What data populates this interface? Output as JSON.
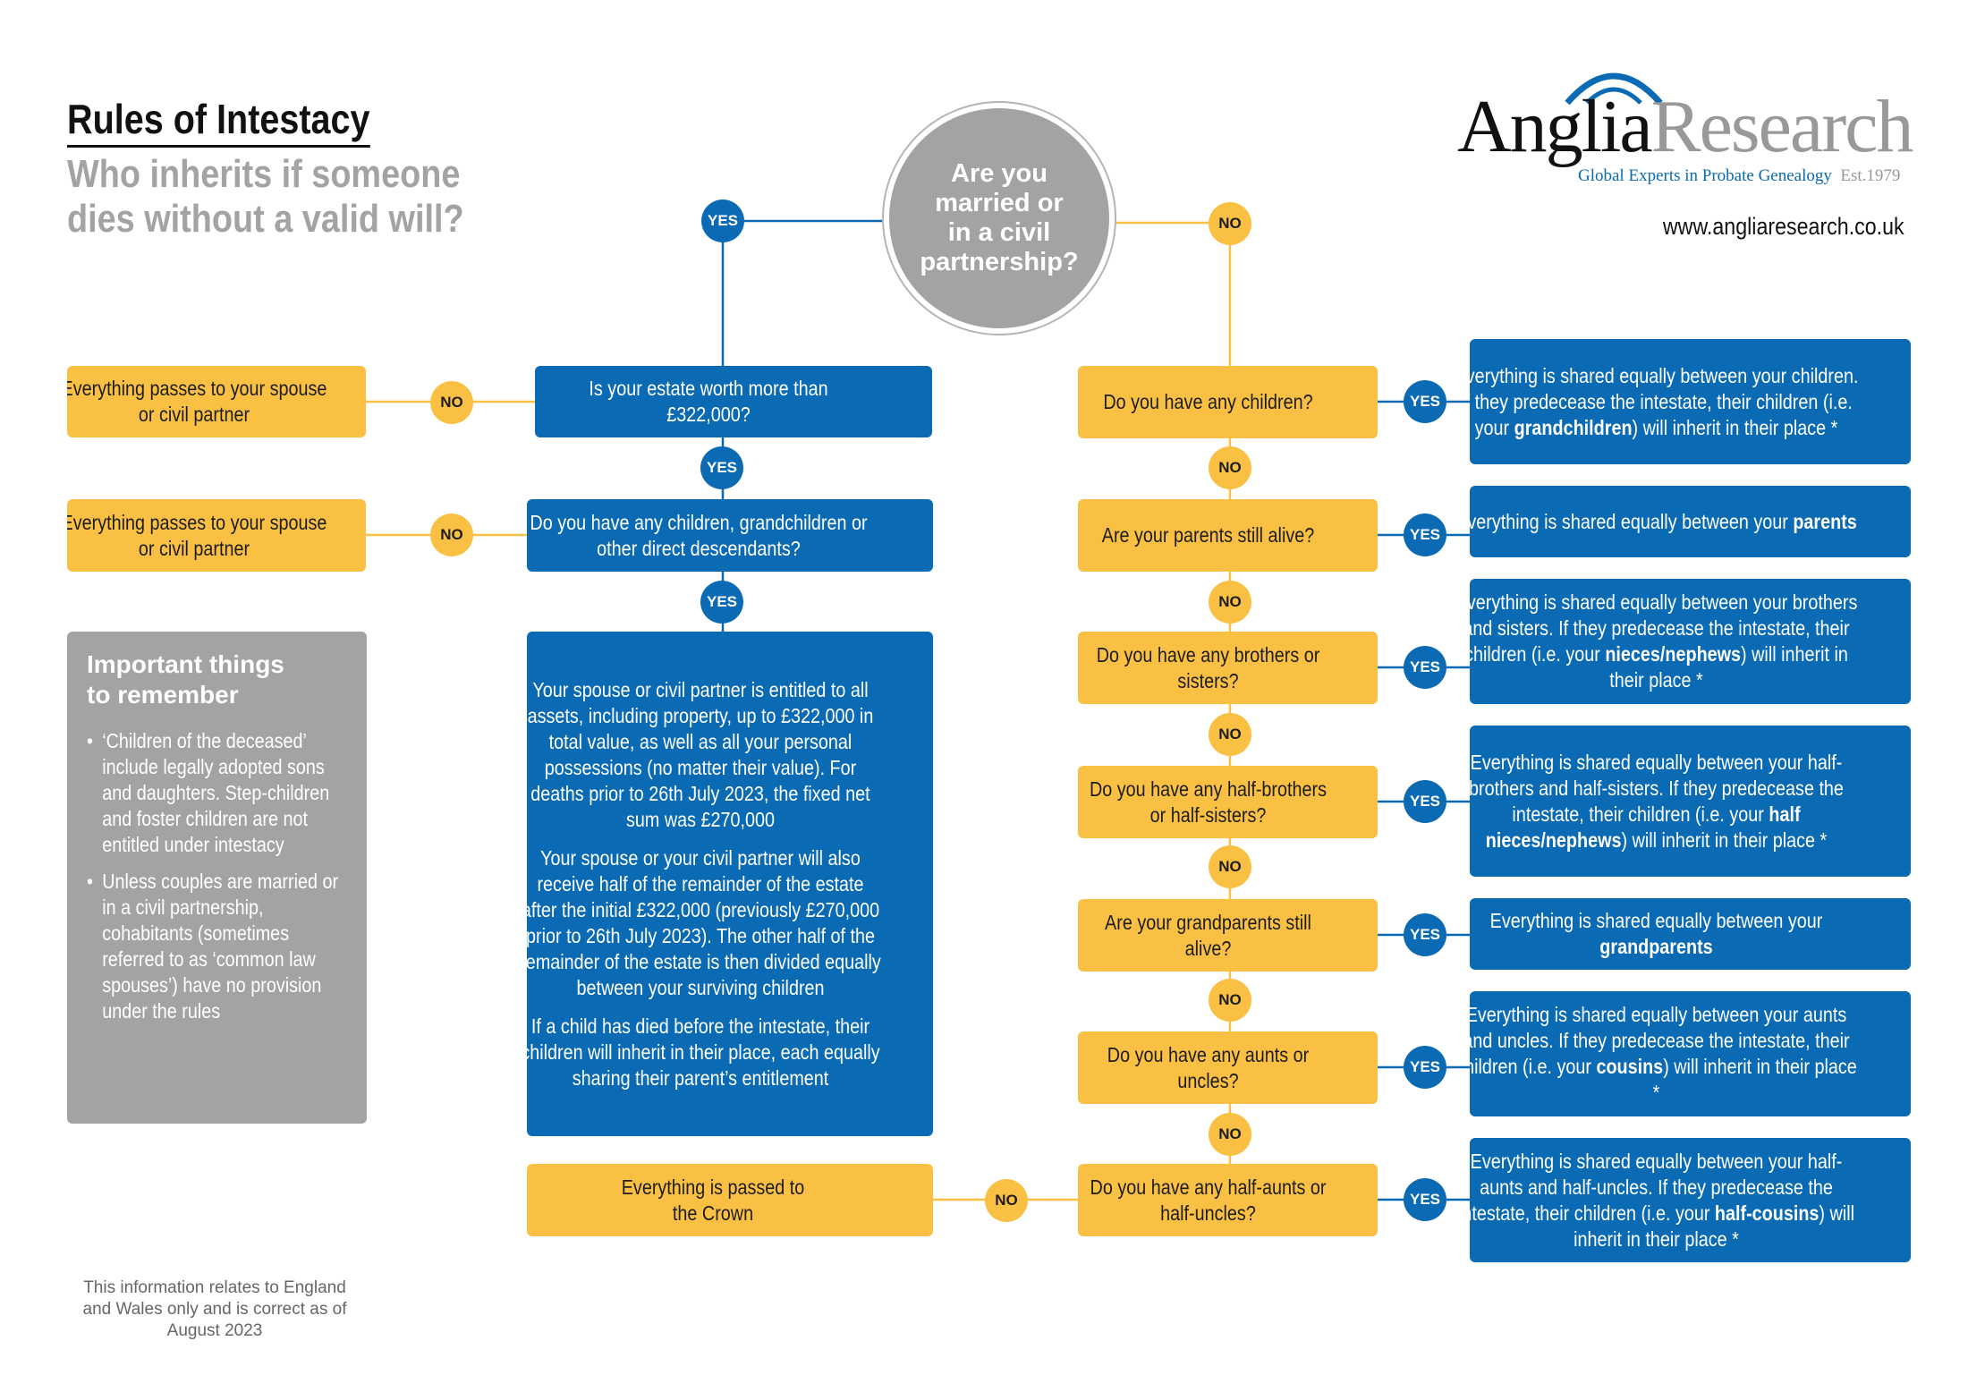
{
  "header": {
    "title": "Rules of Intestacy",
    "subtitle_line1": "Who inherits if someone",
    "subtitle_line2": "dies without a valid will?"
  },
  "logo": {
    "brand_dark": "Anglia",
    "brand_light": "Research",
    "tagline": "Global Experts in Probate Genealogy",
    "est": "Est.1979",
    "url": "www.angliaresearch.co.uk"
  },
  "start_question": {
    "line1": "Are you",
    "line2": "married or",
    "line3": "in a civil",
    "line4": "partnership?"
  },
  "labels": {
    "yes": "YES",
    "no": "NO"
  },
  "left": {
    "q1": "Is your estate worth more than £322,000?",
    "q1_no": "Everything passes to your spouse or civil partner",
    "q2": "Do you have any children, grandchildren or other direct descendants?",
    "q2_no": "Everything passes to your spouse or civil partner",
    "outcome_p1": "Your spouse or civil partner is entitled to all assets, including property, up to £322,000 in total value, as well as all your personal possessions (no matter their value). For deaths prior to 26th July 2023, the fixed net sum was £270,000",
    "outcome_p2": "Your spouse or your civil partner will also receive half of the remainder of the estate after the initial £322,000 (previously £270,000 prior to 26th July 2023). The other half of the remainder of the estate is then divided equally between your surviving children",
    "outcome_p3": "If a child has died before the intestate, their children will inherit in their place, each equally sharing their parent’s entitlement",
    "crown": "Everything is passed to the Crown"
  },
  "remember": {
    "title": "Important things to remember",
    "items": [
      "‘Children of the deceased’ include legally adopted sons and daughters. Step-children and foster children are not entitled under intestacy",
      "Unless couples are married or in a civil partnership, cohabitants (sometimes referred to as ‘common law spouses’) have no provision under the rules"
    ]
  },
  "footnote": "This information relates to England and Wales only and is correct as of August 2023",
  "right": [
    {
      "q": "Do you have any children?",
      "pre": "Everything is shared equally between your children. If they predecease the intestate, their children (i.e. your ",
      "bold": "grandchildren",
      "post": ") will inherit in their place *"
    },
    {
      "q": "Are your parents still alive?",
      "pre": "Everything is shared equally between your ",
      "bold": "parents",
      "post": ""
    },
    {
      "q": "Do you have any brothers or sisters?",
      "pre": "Everything is shared equally between your brothers and sisters. If they predecease the intestate, their children (i.e. your ",
      "bold": "nieces/nephews",
      "post": ") will inherit in their place *"
    },
    {
      "q": "Do you have any half-brothers or half-sisters?",
      "pre": "Everything is shared equally between your half-brothers and half-sisters. If they predecease the intestate, their children (i.e. your ",
      "bold": "half nieces/nephews",
      "post": ") will inherit in their place *"
    },
    {
      "q": "Are your grandparents still alive?",
      "pre": "Everything is shared equally between your ",
      "bold": "grandparents",
      "post": ""
    },
    {
      "q": "Do you have any aunts or uncles?",
      "pre": "Everything is shared equally between your aunts and uncles. If they predecease the intestate, their children (i.e. your ",
      "bold": "cousins",
      "post": ") will inherit in their place *"
    },
    {
      "q": "Do you have any half-aunts or half-uncles?",
      "pre": "Everything is shared equally between your half-aunts and half-uncles. If they predecease the intestate, their children (i.e. your ",
      "bold": "half-cousins",
      "post": ") will inherit in their place *"
    }
  ],
  "colors": {
    "blue": "#0a6ab4",
    "yellow": "#f9c043",
    "grey": "#a3a3a3"
  }
}
